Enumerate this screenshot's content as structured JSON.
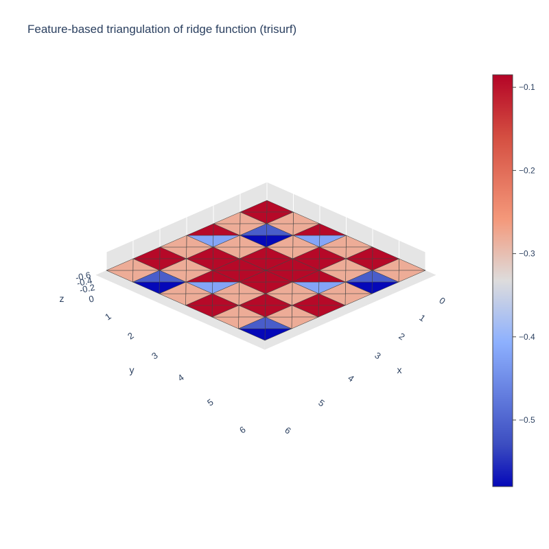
{
  "chart_data": {
    "type": "trisurf",
    "title": "Feature-based triangulation of ridge function (trisurf)",
    "axes": {
      "x": {
        "label": "x",
        "ticks": [
          "0",
          "1",
          "2",
          "3",
          "4",
          "5",
          "6"
        ],
        "range": [
          0,
          6
        ]
      },
      "y": {
        "label": "y",
        "ticks": [
          "1",
          "2",
          "3",
          "4",
          "5",
          "6"
        ],
        "range": [
          0,
          6
        ]
      },
      "z": {
        "label": "z",
        "ticks": [
          "0",
          "-0.2",
          "-0.4",
          "-0.6"
        ],
        "range": [
          -0.58,
          0
        ]
      }
    },
    "colorscale": "coolwarm",
    "colorbar": {
      "range": [
        -0.58,
        -0.085
      ],
      "ticks": [
        "-0.1",
        "-0.2",
        "-0.3",
        "-0.4",
        "-0.5"
      ]
    },
    "grid": true,
    "cell_size": 1,
    "cell_values_z": [
      [
        -0.09,
        -0.28,
        -0.09,
        -0.28,
        -0.09,
        -0.28
      ],
      [
        -0.28,
        -0.51,
        -0.28,
        -0.09,
        -0.28,
        -0.51
      ],
      [
        -0.09,
        -0.28,
        -0.09,
        -0.09,
        -0.09,
        -0.28
      ],
      [
        -0.28,
        -0.09,
        -0.09,
        -0.09,
        -0.28,
        -0.09
      ],
      [
        -0.09,
        -0.28,
        -0.09,
        -0.28,
        -0.09,
        -0.28
      ],
      [
        -0.28,
        -0.51,
        -0.28,
        -0.09,
        -0.28,
        -0.51
      ]
    ],
    "accent_cells_z": [
      {
        "i": 1,
        "j": 1,
        "value": -0.58
      },
      {
        "i": 1,
        "j": 5,
        "value": -0.58
      },
      {
        "i": 5,
        "j": 1,
        "value": -0.58
      },
      {
        "i": 5,
        "j": 5,
        "value": -0.58
      },
      {
        "i": 0,
        "j": 2,
        "value": -0.42
      },
      {
        "i": 2,
        "j": 0,
        "value": -0.42
      },
      {
        "i": 4,
        "j": 2,
        "value": -0.42
      },
      {
        "i": 2,
        "j": 4,
        "value": -0.42
      }
    ]
  }
}
